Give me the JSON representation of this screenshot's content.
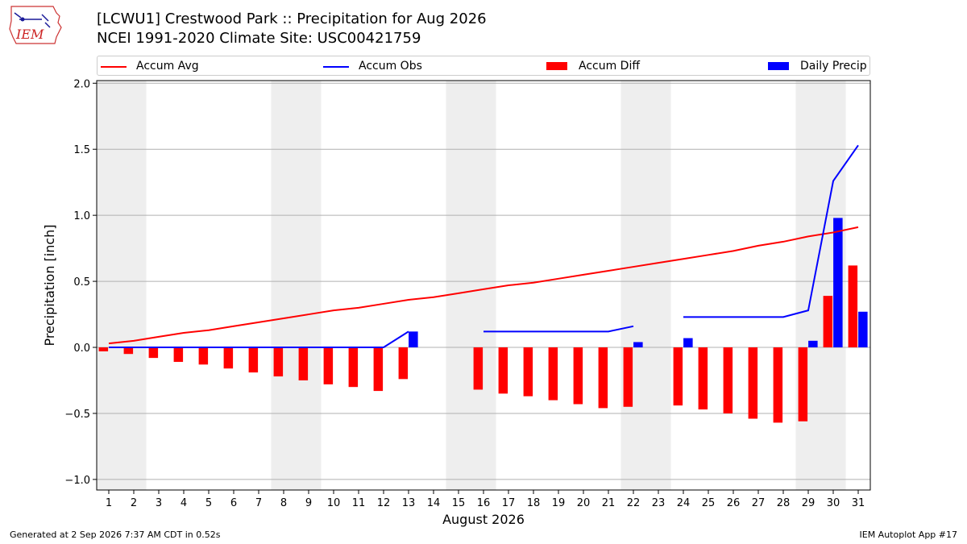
{
  "header": {
    "title_line1": "[LCWU1] Crestwood Park :: Precipitation for Aug 2026",
    "title_line2": "NCEI 1991-2020 Climate Site: USC00421759",
    "logo_text": "IEM"
  },
  "legend": {
    "accum_avg": "Accum Avg",
    "accum_obs": "Accum Obs",
    "accum_diff": "Accum Diff",
    "daily_precip": "Daily Precip"
  },
  "footer": {
    "generated": "Generated at 2 Sep 2026 7:37 AM CDT in 0.52s",
    "app": "IEM Autoplot App #17"
  },
  "colors": {
    "avg": "#ff0000",
    "obs": "#0000ff",
    "diff": "#ff0000",
    "daily": "#0000ff",
    "weekend_shade": "#eeeeee",
    "grid": "#b0b0b0"
  },
  "chart_data": {
    "type": "bar",
    "title": "[LCWU1] Crestwood Park :: Precipitation for Aug 2026",
    "subtitle": "NCEI 1991-2020 Climate Site: USC00421759",
    "xlabel": "August 2026",
    "ylabel": "Precipitation [inch]",
    "ylim": [
      -1.08,
      2.02
    ],
    "yticks": [
      -1.0,
      -0.5,
      0.0,
      0.5,
      1.0,
      1.5,
      2.0
    ],
    "ytick_labels": [
      "−1.0",
      "−0.5",
      "0.0",
      "0.5",
      "1.0",
      "1.5",
      "2.0"
    ],
    "grid": true,
    "legend_position": "top",
    "days": [
      1,
      2,
      3,
      4,
      5,
      6,
      7,
      8,
      9,
      10,
      11,
      12,
      13,
      14,
      15,
      16,
      17,
      18,
      19,
      20,
      21,
      22,
      23,
      24,
      25,
      26,
      27,
      28,
      29,
      30,
      31
    ],
    "shaded_days": [
      1,
      2,
      8,
      9,
      15,
      16,
      22,
      23,
      29,
      30
    ],
    "series": [
      {
        "name": "Accum Avg",
        "kind": "line",
        "values": [
          0.03,
          0.05,
          0.08,
          0.11,
          0.13,
          0.16,
          0.19,
          0.22,
          0.25,
          0.28,
          0.3,
          0.33,
          0.36,
          0.38,
          0.41,
          0.44,
          0.47,
          0.49,
          0.52,
          0.55,
          0.58,
          0.61,
          0.64,
          0.67,
          0.7,
          0.73,
          0.77,
          0.8,
          0.84,
          0.87,
          0.91
        ]
      },
      {
        "name": "Accum Obs",
        "kind": "line",
        "values": [
          0.0,
          0.0,
          0.0,
          0.0,
          0.0,
          0.0,
          0.0,
          0.0,
          0.0,
          0.0,
          0.0,
          0.0,
          0.12,
          null,
          null,
          0.12,
          0.12,
          0.12,
          0.12,
          0.12,
          0.12,
          0.16,
          null,
          0.23,
          0.23,
          0.23,
          0.23,
          0.23,
          0.28,
          1.26,
          1.53
        ]
      },
      {
        "name": "Accum Diff",
        "kind": "bar",
        "values": [
          -0.03,
          -0.05,
          -0.08,
          -0.11,
          -0.13,
          -0.16,
          -0.19,
          -0.22,
          -0.25,
          -0.28,
          -0.3,
          -0.33,
          -0.24,
          null,
          null,
          -0.32,
          -0.35,
          -0.37,
          -0.4,
          -0.43,
          -0.46,
          -0.45,
          null,
          -0.44,
          -0.47,
          -0.5,
          -0.54,
          -0.57,
          -0.56,
          0.39,
          0.62
        ]
      },
      {
        "name": "Daily Precip",
        "kind": "bar",
        "values": [
          0,
          0,
          0,
          0,
          0,
          0,
          0,
          0,
          0,
          0,
          0,
          0,
          0.12,
          null,
          null,
          0,
          0,
          0,
          0,
          0,
          0,
          0.04,
          null,
          0.07,
          0,
          0,
          0,
          0,
          0.05,
          0.98,
          0.27
        ]
      }
    ]
  }
}
